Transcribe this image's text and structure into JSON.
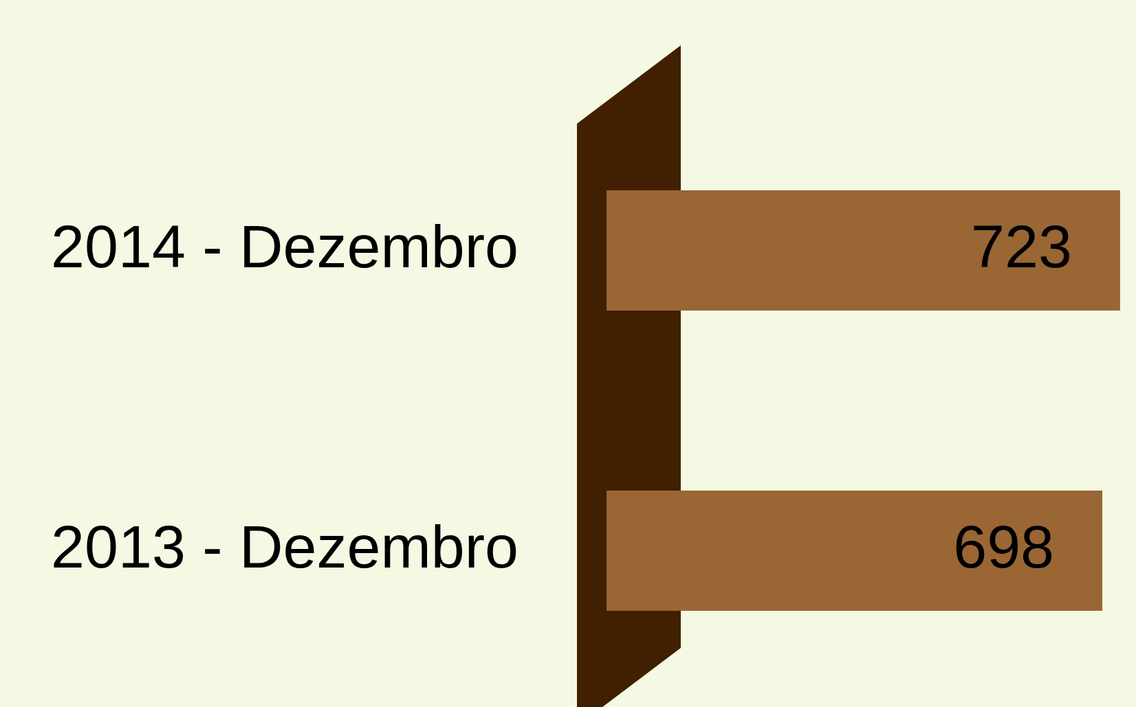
{
  "chart_data": {
    "type": "bar",
    "orientation": "horizontal",
    "categories": [
      "2014 - Dezembro",
      "2013 - Dezembro"
    ],
    "values": [
      723,
      698
    ],
    "color": "#9a6634",
    "data_labels": true,
    "legend": false,
    "tick_labels": "y"
  }
}
